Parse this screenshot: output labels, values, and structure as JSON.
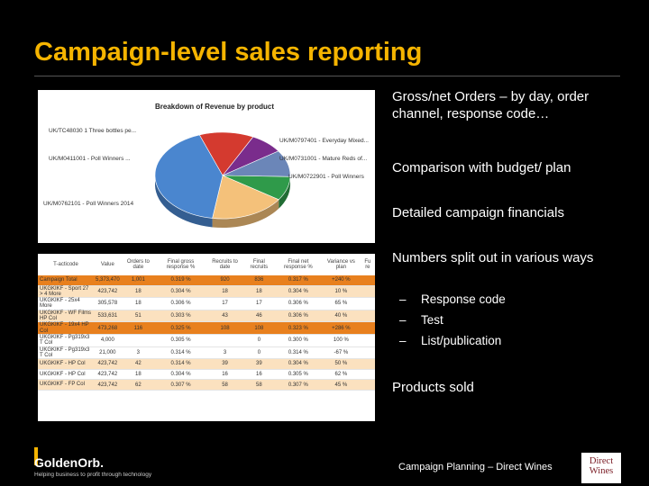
{
  "title": "Campaign-level sales reporting",
  "pie_chart": {
    "title": "Breakdown of Revenue by product",
    "labels": [
      "UK/TC48030 1  Three bottles pe...",
      "UK/M0797401 - Everyday Mixed...",
      "UK/M0411001 - Poll Winners ...",
      "UK/M0731001 - Mature Reds of...",
      "UK/M0722901 - Poll Winners",
      "UK/M0762101 - Poll Winners 2014"
    ],
    "slice_colors": [
      "#d43a2f",
      "#7a2c8c",
      "#2f9a4a",
      "#6b86b8",
      "#f4c17a",
      "#4a86cf"
    ]
  },
  "table": {
    "headers": [
      "T-acticode",
      "Value",
      "Orders to date",
      "Final gross response %",
      "Recruits to date",
      "Final recruits",
      "Final net response %",
      "Variance vs plan",
      "Fu re"
    ],
    "rows": [
      {
        "cells": [
          "Campaign Total",
          "5,373,470",
          "1,001",
          "0.319 %",
          "920",
          "836",
          "0.317 %",
          "+240 %",
          ""
        ],
        "style": "r-deep"
      },
      {
        "cells": [
          "UKGKIKF - Sport 27 > 4 More",
          "423,742",
          "18",
          "0.304 %",
          "18",
          "18",
          "0.304 %",
          "10 %",
          ""
        ],
        "style": "r-light"
      },
      {
        "cells": [
          "UKGKIKF - 25x4 More",
          "305,578",
          "18",
          "0.306 %",
          "17",
          "17",
          "0.306 %",
          "65 %",
          ""
        ],
        "style": "r-white"
      },
      {
        "cells": [
          "UKGKIKF - WF Films HP Col",
          "533,631",
          "51",
          "0.303 %",
          "43",
          "46",
          "0.306 %",
          "40 %",
          ""
        ],
        "style": "r-light"
      },
      {
        "cells": [
          "UKGKIKF - 19x4 HP Col",
          "473,268",
          "116",
          "0.325 %",
          "108",
          "108",
          "0.323 %",
          "+286 %",
          ""
        ],
        "style": "r-deep"
      },
      {
        "cells": [
          "UKGKIKF - Pg319x3 T Col",
          "4,000",
          "",
          "0.305 %",
          "",
          "0",
          "0.300 %",
          "100 %",
          ""
        ],
        "style": "r-white"
      },
      {
        "cells": [
          "UKGKIKF - Pg319x3 T Col",
          "21,000",
          "3",
          "0.314 %",
          "3",
          "0",
          "0.314 %",
          "-67 %",
          ""
        ],
        "style": "r-white"
      },
      {
        "cells": [
          "UKGKIKF - HP Col",
          "423,742",
          "42",
          "0.314 %",
          "39",
          "39",
          "0.304 %",
          "50 %",
          ""
        ],
        "style": "r-light"
      },
      {
        "cells": [
          "UKGKIKF - HP Col",
          "423,742",
          "18",
          "0.304 %",
          "16",
          "16",
          "0.305 %",
          "62 %",
          ""
        ],
        "style": "r-white"
      },
      {
        "cells": [
          "UKGKIKF - FP Col",
          "423,742",
          "62",
          "0.307 %",
          "58",
          "58",
          "0.307 %",
          "45 %",
          ""
        ],
        "style": "r-light"
      }
    ]
  },
  "bullets": [
    "Gross/net Orders – by day, order channel, response code…",
    "Comparison with budget/ plan",
    "Detailed campaign financials",
    "Numbers split out in various ways"
  ],
  "sub_bullets": [
    {
      "dash": "–",
      "text": "Response code"
    },
    {
      "dash": "–",
      "text": "Test"
    },
    {
      "dash": "–",
      "text": "List/publication"
    }
  ],
  "last_bullet": "Products sold",
  "footer": {
    "logo": "GoldenOrb.",
    "tagline": "Helping business to profit through technology",
    "text": "Campaign Planning – Direct Wines",
    "partner_logo_line1": "Direct",
    "partner_logo_line2": "Wines"
  }
}
